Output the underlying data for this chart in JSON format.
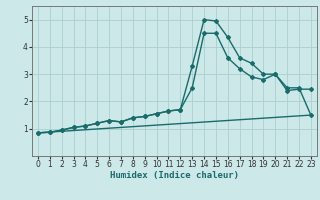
{
  "title": "",
  "xlabel": "Humidex (Indice chaleur)",
  "xlim": [
    -0.5,
    23.5
  ],
  "ylim": [
    0,
    5.5
  ],
  "xticks": [
    0,
    1,
    2,
    3,
    4,
    5,
    6,
    7,
    8,
    9,
    10,
    11,
    12,
    13,
    14,
    15,
    16,
    17,
    18,
    19,
    20,
    21,
    22,
    23
  ],
  "yticks": [
    1,
    2,
    3,
    4,
    5
  ],
  "bg_color": "#cce8e8",
  "grid_color": "#aacfcf",
  "line_color": "#1a6b6b",
  "lines": [
    {
      "x": [
        0,
        1,
        2,
        3,
        4,
        5,
        6,
        7,
        8,
        9,
        10,
        11,
        12,
        13,
        14,
        15,
        16,
        17,
        18,
        19,
        20,
        21,
        22,
        23
      ],
      "y": [
        0.85,
        0.87,
        0.95,
        1.05,
        1.1,
        1.2,
        1.3,
        1.25,
        1.4,
        1.45,
        1.55,
        1.65,
        1.7,
        3.3,
        5.0,
        4.95,
        4.35,
        3.6,
        3.4,
        3.0,
        3.0,
        2.5,
        2.5,
        1.5
      ],
      "marker": "D",
      "markersize": 2.0,
      "linewidth": 1.0
    },
    {
      "x": [
        0,
        1,
        2,
        3,
        4,
        5,
        6,
        7,
        8,
        9,
        10,
        11,
        12,
        13,
        14,
        15,
        16,
        17,
        18,
        19,
        20,
        21,
        22,
        23
      ],
      "y": [
        0.85,
        0.87,
        0.95,
        1.05,
        1.1,
        1.2,
        1.3,
        1.25,
        1.4,
        1.45,
        1.55,
        1.65,
        1.7,
        2.5,
        4.5,
        4.5,
        3.6,
        3.2,
        2.9,
        2.8,
        3.0,
        2.4,
        2.45,
        2.45
      ],
      "marker": "D",
      "markersize": 2.0,
      "linewidth": 1.0
    },
    {
      "x": [
        0,
        23
      ],
      "y": [
        0.85,
        1.5
      ],
      "marker": null,
      "markersize": 0,
      "linewidth": 1.0
    }
  ]
}
